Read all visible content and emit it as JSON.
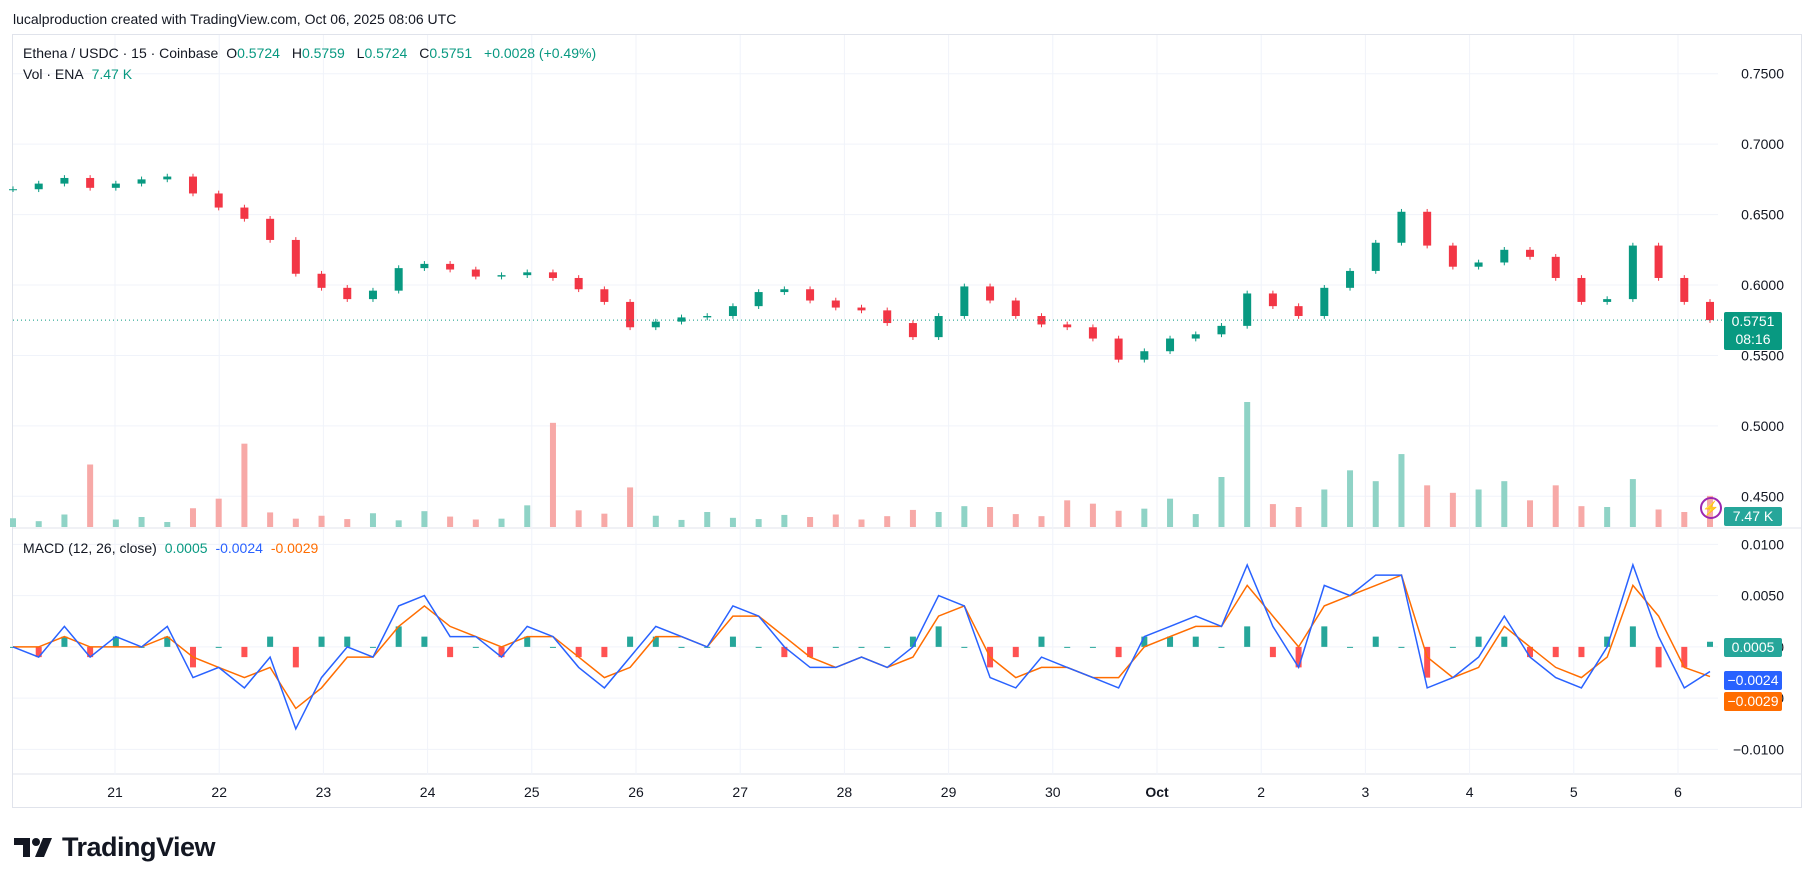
{
  "header": {
    "attribution": "lucalproduction created with TradingView.com, Oct 06, 2025 08:06 UTC"
  },
  "legend": {
    "symbol": "Ethena / USDC · 15 · Coinbase",
    "open_label": "O",
    "open": "0.5724",
    "high_label": "H",
    "high": "0.5759",
    "low_label": "L",
    "low": "0.5724",
    "close_label": "C",
    "close": "0.5751",
    "change": "+0.0028 (+0.49%)",
    "vol_label": "Vol · ENA",
    "vol_value": "7.47 K"
  },
  "macd_legend": {
    "label": "MACD (12, 26, close)",
    "hist": "0.0005",
    "macd": "-0.0024",
    "signal": "-0.0029"
  },
  "tags": {
    "price": "0.5751",
    "countdown": "08:16",
    "volume": "7.47 K",
    "hist": "0.0005",
    "macd": "−0.0024",
    "signal": "−0.0029"
  },
  "logo": {
    "text": "TradingView"
  },
  "colors": {
    "up": "#089981",
    "down": "#f23645",
    "macd": "#2962ff",
    "signal": "#ff6d00",
    "grid": "#f0f3fa"
  },
  "chart_data": [
    {
      "type": "line",
      "title": "Ethena / USDC · 15 · Coinbase",
      "x_ticks": [
        "21",
        "22",
        "23",
        "24",
        "25",
        "26",
        "27",
        "28",
        "29",
        "30",
        "Oct",
        "2",
        "3",
        "4",
        "5",
        "6"
      ],
      "y_ticks": [
        "0.7500",
        "0.7000",
        "0.6500",
        "0.6000",
        "0.5500",
        "0.5000",
        "0.4500"
      ],
      "ylim": [
        0.4275,
        0.7775
      ],
      "series": [
        {
          "name": "Ethena / USDC",
          "x": [
            "Sep 20 00:00",
            "Sep 20 06:00",
            "Sep 20 12:00",
            "Sep 20 18:00",
            "Sep 21 00:00",
            "Sep 21 06:00",
            "Sep 21 12:00",
            "Sep 21 18:00",
            "Sep 22 00:00",
            "Sep 22 06:00",
            "Sep 22 12:00",
            "Sep 22 18:00",
            "Sep 23 00:00",
            "Sep 23 06:00",
            "Sep 23 12:00",
            "Sep 23 18:00",
            "Sep 24 00:00",
            "Sep 24 06:00",
            "Sep 24 12:00",
            "Sep 24 18:00",
            "Sep 25 00:00",
            "Sep 25 06:00",
            "Sep 25 12:00",
            "Sep 25 18:00",
            "Sep 26 00:00",
            "Sep 26 06:00",
            "Sep 26 12:00",
            "Sep 26 18:00",
            "Sep 27 00:00",
            "Sep 27 06:00",
            "Sep 27 12:00",
            "Sep 27 18:00",
            "Sep 28 00:00",
            "Sep 28 06:00",
            "Sep 28 12:00",
            "Sep 28 18:00",
            "Sep 29 00:00",
            "Sep 29 06:00",
            "Sep 29 12:00",
            "Sep 29 18:00",
            "Sep 30 00:00",
            "Sep 30 06:00",
            "Sep 30 12:00",
            "Sep 30 18:00",
            "Oct 01 00:00",
            "Oct 01 06:00",
            "Oct 01 12:00",
            "Oct 01 18:00",
            "Oct 02 00:00",
            "Oct 02 06:00",
            "Oct 02 12:00",
            "Oct 02 18:00",
            "Oct 03 00:00",
            "Oct 03 06:00",
            "Oct 03 12:00",
            "Oct 03 18:00",
            "Oct 04 00:00",
            "Oct 04 06:00",
            "Oct 04 12:00",
            "Oct 04 18:00",
            "Oct 05 00:00",
            "Oct 05 06:00",
            "Oct 05 12:00",
            "Oct 05 18:00",
            "Oct 06 00:00",
            "Oct 06 06:00",
            "Oct 06 08:00"
          ],
          "values": [
            0.668,
            0.672,
            0.676,
            0.669,
            0.672,
            0.675,
            0.677,
            0.665,
            0.655,
            0.647,
            0.632,
            0.608,
            0.598,
            0.59,
            0.596,
            0.612,
            0.615,
            0.611,
            0.606,
            0.607,
            0.609,
            0.605,
            0.597,
            0.588,
            0.57,
            0.574,
            0.577,
            0.578,
            0.585,
            0.595,
            0.597,
            0.589,
            0.584,
            0.582,
            0.573,
            0.563,
            0.578,
            0.599,
            0.589,
            0.578,
            0.572,
            0.57,
            0.562,
            0.547,
            0.553,
            0.562,
            0.565,
            0.571,
            0.594,
            0.585,
            0.578,
            0.598,
            0.61,
            0.63,
            0.652,
            0.628,
            0.613,
            0.616,
            0.625,
            0.62,
            0.605,
            0.588,
            0.59,
            0.628,
            0.605,
            0.588,
            0.5751
          ]
        }
      ]
    },
    {
      "type": "bar",
      "title": "Vol · ENA",
      "series": [
        {
          "name": "Vol · ENA",
          "values": [
            2.1,
            1.4,
            3.0,
            15.0,
            1.8,
            2.4,
            1.2,
            4.5,
            6.8,
            20.0,
            3.5,
            2.0,
            2.7,
            1.9,
            3.3,
            1.6,
            3.8,
            2.5,
            1.8,
            2.0,
            5.2,
            25.0,
            4.0,
            3.2,
            9.5,
            2.7,
            1.7,
            3.6,
            2.2,
            1.9,
            2.9,
            2.4,
            3.0,
            1.8,
            2.6,
            4.1,
            3.6,
            5.0,
            4.8,
            3.1,
            2.6,
            6.4,
            5.6,
            3.9,
            4.4,
            6.8,
            3.1,
            12.0,
            30.0,
            5.5,
            4.8,
            9.0,
            13.6,
            11.0,
            17.5,
            10.0,
            8.2,
            9.0,
            11.0,
            6.4,
            10.0,
            5.0,
            4.8,
            11.5,
            4.2,
            3.6,
            7.47
          ]
        }
      ]
    },
    {
      "type": "line",
      "title": "MACD (12, 26, close)",
      "y_ticks": [
        "0.0100",
        "0.0050",
        "0.0000",
        "−0.0050",
        "−0.0100"
      ],
      "ylim": [
        -0.0125,
        0.0115
      ],
      "series": [
        {
          "name": "MACD",
          "values": [
            0.0,
            -0.001,
            0.002,
            -0.001,
            0.001,
            0.0,
            0.002,
            -0.003,
            -0.002,
            -0.004,
            -0.001,
            -0.008,
            -0.003,
            0.0,
            -0.001,
            0.004,
            0.005,
            0.001,
            0.001,
            -0.001,
            0.002,
            0.001,
            -0.002,
            -0.004,
            -0.001,
            0.002,
            0.001,
            0.0,
            0.004,
            0.003,
            0.0,
            -0.002,
            -0.002,
            -0.001,
            -0.002,
            0.0,
            0.005,
            0.004,
            -0.003,
            -0.004,
            -0.001,
            -0.002,
            -0.003,
            -0.004,
            0.001,
            0.002,
            0.003,
            0.002,
            0.008,
            0.002,
            -0.002,
            0.006,
            0.005,
            0.007,
            0.007,
            -0.004,
            -0.003,
            -0.001,
            0.003,
            -0.001,
            -0.003,
            -0.004,
            0.0,
            0.008,
            0.001,
            -0.004,
            -0.0024
          ]
        },
        {
          "name": "Signal",
          "values": [
            0.0,
            0.0,
            0.001,
            0.0,
            0.0,
            0.0,
            0.001,
            -0.001,
            -0.002,
            -0.003,
            -0.002,
            -0.006,
            -0.004,
            -0.001,
            -0.001,
            0.002,
            0.004,
            0.002,
            0.001,
            0.0,
            0.001,
            0.001,
            -0.001,
            -0.003,
            -0.002,
            0.001,
            0.001,
            0.0,
            0.003,
            0.003,
            0.001,
            -0.001,
            -0.002,
            -0.001,
            -0.002,
            -0.001,
            0.003,
            0.004,
            -0.001,
            -0.003,
            -0.002,
            -0.002,
            -0.003,
            -0.003,
            0.0,
            0.001,
            0.002,
            0.002,
            0.006,
            0.003,
            0.0,
            0.004,
            0.005,
            0.006,
            0.007,
            -0.001,
            -0.003,
            -0.002,
            0.002,
            0.0,
            -0.002,
            -0.003,
            -0.001,
            0.006,
            0.003,
            -0.002,
            -0.0029
          ]
        },
        {
          "name": "Histogram",
          "values": [
            0.0,
            -0.001,
            0.001,
            -0.001,
            0.001,
            0.0,
            0.001,
            -0.002,
            0.0,
            -0.001,
            0.001,
            -0.002,
            0.001,
            0.001,
            0.0,
            0.002,
            0.001,
            -0.001,
            0.0,
            -0.001,
            0.001,
            0.0,
            -0.001,
            -0.001,
            0.001,
            0.001,
            0.0,
            0.0,
            0.001,
            0.0,
            -0.001,
            -0.001,
            0.0,
            0.0,
            0.0,
            0.001,
            0.002,
            0.0,
            -0.002,
            -0.001,
            0.001,
            0.0,
            0.0,
            -0.001,
            0.001,
            0.001,
            0.001,
            0.0,
            0.002,
            -0.001,
            -0.002,
            0.002,
            0.0,
            0.001,
            0.0,
            -0.003,
            0.0,
            0.001,
            0.001,
            -0.001,
            -0.001,
            -0.001,
            0.001,
            0.002,
            -0.002,
            -0.002,
            0.0005
          ]
        }
      ]
    }
  ]
}
